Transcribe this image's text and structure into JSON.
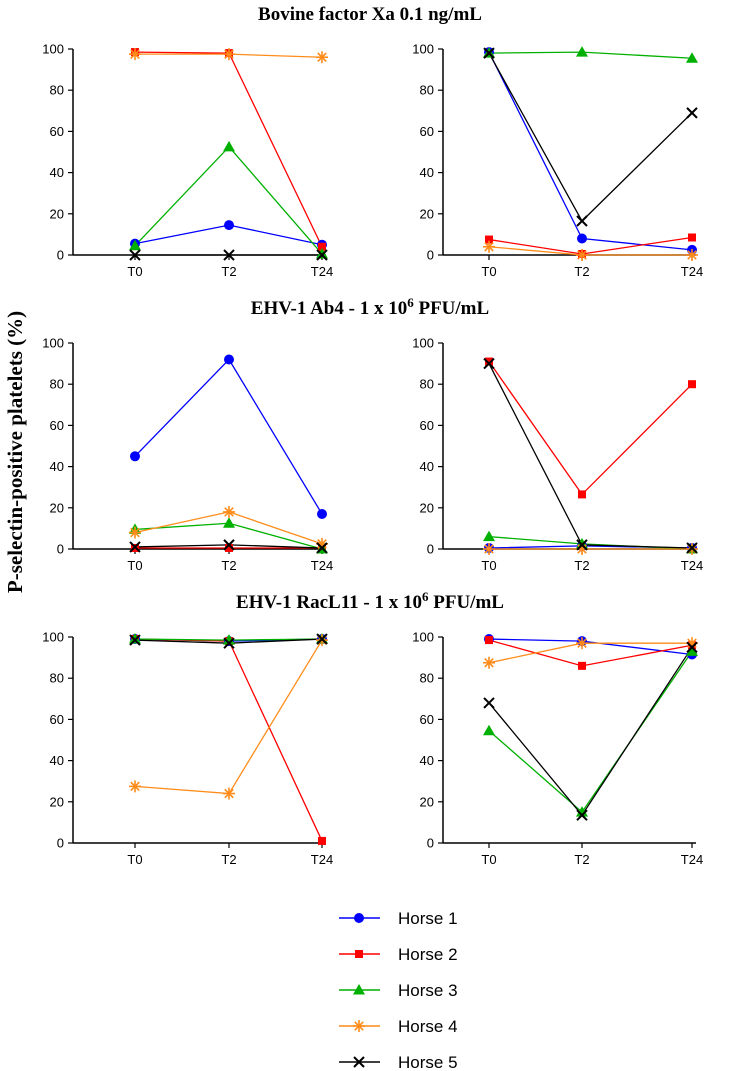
{
  "figure": {
    "ylabel": "P-selectin-positive platelets (%)",
    "rows": [
      {
        "title_text": "Bovine factor Xa 0.1 ng/mL",
        "title_pre": "",
        "title_sup": "",
        "title_post": ""
      },
      {
        "title_text": "EHV-1 Ab4 - 1 x 10^6 PFU/mL",
        "title_pre": "EHV-1 Ab4 - 1 x 10",
        "title_sup": "6",
        "title_post": " PFU/mL"
      },
      {
        "title_text": "EHV-1 RacL11 - 1 x 10^6 PFU/mL",
        "title_pre": "EHV-1 RacL11 - 1 x 10",
        "title_sup": "6",
        "title_post": " PFU/mL"
      }
    ]
  },
  "legend": [
    {
      "label": "Horse 1",
      "color": "#0000ff",
      "marker": "circle"
    },
    {
      "label": "Horse 2",
      "color": "#ff0000",
      "marker": "square"
    },
    {
      "label": "Horse 3",
      "color": "#00b000",
      "marker": "triangle"
    },
    {
      "label": "Horse 4",
      "color": "#ff8c1a",
      "marker": "asterisk"
    },
    {
      "label": "Horse 5",
      "color": "#000000",
      "marker": "x"
    }
  ],
  "chart_data": [
    {
      "type": "line",
      "title": "Bovine factor Xa 0.1 ng/mL",
      "panel": "left",
      "categories": [
        "T0",
        "T2",
        "T24"
      ],
      "ylim": [
        0,
        100
      ],
      "yticks": [
        0,
        20,
        40,
        60,
        80,
        100
      ],
      "ylabel": "P-selectin-positive platelets (%)",
      "series": [
        {
          "name": "Horse 1",
          "values": [
            5.5,
            14.5,
            5
          ]
        },
        {
          "name": "Horse 2",
          "values": [
            98.5,
            98,
            4
          ]
        },
        {
          "name": "Horse 3",
          "values": [
            4.5,
            52.5,
            0.5
          ]
        },
        {
          "name": "Horse 4",
          "values": [
            97.5,
            97.5,
            96
          ]
        },
        {
          "name": "Horse 5",
          "values": [
            0,
            0,
            0
          ]
        }
      ]
    },
    {
      "type": "line",
      "title": "Bovine factor Xa 0.1 ng/mL",
      "panel": "right",
      "categories": [
        "T0",
        "T2",
        "T24"
      ],
      "ylim": [
        0,
        100
      ],
      "yticks": [
        0,
        20,
        40,
        60,
        80,
        100
      ],
      "ylabel": "P-selectin-positive platelets (%)",
      "series": [
        {
          "name": "Horse 1",
          "values": [
            98.5,
            8,
            2.5
          ]
        },
        {
          "name": "Horse 2",
          "values": [
            7.5,
            0.5,
            8.5
          ]
        },
        {
          "name": "Horse 3",
          "values": [
            98,
            98.5,
            95.5
          ]
        },
        {
          "name": "Horse 4",
          "values": [
            4,
            0,
            0
          ]
        },
        {
          "name": "Horse 5",
          "values": [
            98,
            16.5,
            69
          ]
        }
      ]
    },
    {
      "type": "line",
      "title": "EHV-1 Ab4 - 1 x 10^6 PFU/mL",
      "panel": "left",
      "categories": [
        "T0",
        "T2",
        "T24"
      ],
      "ylim": [
        0,
        100
      ],
      "yticks": [
        0,
        20,
        40,
        60,
        80,
        100
      ],
      "ylabel": "P-selectin-positive platelets (%)",
      "series": [
        {
          "name": "Horse 1",
          "values": [
            45,
            92,
            17
          ]
        },
        {
          "name": "Horse 2",
          "values": [
            0.5,
            0.5,
            0.5
          ]
        },
        {
          "name": "Horse 3",
          "values": [
            9.5,
            12.5,
            0
          ]
        },
        {
          "name": "Horse 4",
          "values": [
            8,
            18,
            2.5
          ]
        },
        {
          "name": "Horse 5",
          "values": [
            1,
            2,
            0.5
          ]
        }
      ]
    },
    {
      "type": "line",
      "title": "EHV-1 Ab4 - 1 x 10^6 PFU/mL",
      "panel": "right",
      "categories": [
        "T0",
        "T2",
        "T24"
      ],
      "ylim": [
        0,
        100
      ],
      "yticks": [
        0,
        20,
        40,
        60,
        80,
        100
      ],
      "ylabel": "P-selectin-positive platelets (%)",
      "series": [
        {
          "name": "Horse 1",
          "values": [
            0.5,
            1.5,
            0.5
          ]
        },
        {
          "name": "Horse 2",
          "values": [
            91,
            26.5,
            80
          ]
        },
        {
          "name": "Horse 3",
          "values": [
            6,
            2.5,
            0
          ]
        },
        {
          "name": "Horse 4",
          "values": [
            0,
            0,
            0
          ]
        },
        {
          "name": "Horse 5",
          "values": [
            90,
            2,
            0.5
          ]
        }
      ]
    },
    {
      "type": "line",
      "title": "EHV-1 RacL11 - 1 x 10^6 PFU/mL",
      "panel": "left",
      "categories": [
        "T0",
        "T2",
        "T24"
      ],
      "ylim": [
        0,
        100
      ],
      "yticks": [
        0,
        20,
        40,
        60,
        80,
        100
      ],
      "ylabel": "P-selectin-positive platelets (%)",
      "series": [
        {
          "name": "Horse 1",
          "values": [
            99,
            98,
            99
          ]
        },
        {
          "name": "Horse 2",
          "values": [
            99,
            98,
            1
          ]
        },
        {
          "name": "Horse 3",
          "values": [
            99,
            98.5,
            99
          ]
        },
        {
          "name": "Horse 4",
          "values": [
            27.5,
            24,
            98.5
          ]
        },
        {
          "name": "Horse 5",
          "values": [
            98.5,
            97,
            99
          ]
        }
      ]
    },
    {
      "type": "line",
      "title": "EHV-1 RacL11 - 1 x 10^6 PFU/mL",
      "panel": "right",
      "categories": [
        "T0",
        "T2",
        "T24"
      ],
      "ylim": [
        0,
        100
      ],
      "yticks": [
        0,
        20,
        40,
        60,
        80,
        100
      ],
      "ylabel": "P-selectin-positive platelets (%)",
      "series": [
        {
          "name": "Horse 1",
          "values": [
            99,
            98,
            91.5
          ]
        },
        {
          "name": "Horse 2",
          "values": [
            98.5,
            86,
            96
          ]
        },
        {
          "name": "Horse 3",
          "values": [
            54.5,
            15,
            93
          ]
        },
        {
          "name": "Horse 4",
          "values": [
            87.5,
            97,
            97
          ]
        },
        {
          "name": "Horse 5",
          "values": [
            68,
            13.5,
            95
          ]
        }
      ]
    }
  ]
}
